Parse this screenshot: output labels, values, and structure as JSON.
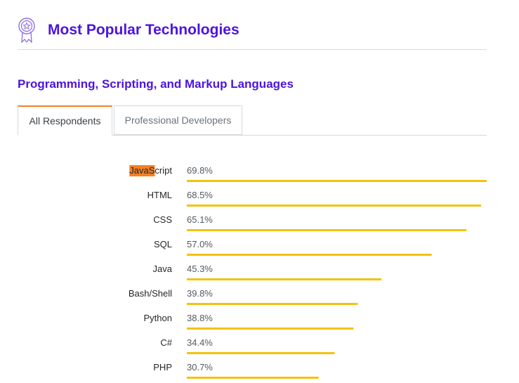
{
  "header": {
    "title": "Most Popular Technologies",
    "icon": "award-ribbon-icon",
    "accent": "#4d14e0"
  },
  "section": {
    "title": "Programming, Scripting, and Markup Languages"
  },
  "tabs": [
    {
      "label": "All Respondents",
      "active": true
    },
    {
      "label": "Professional Developers",
      "active": false
    }
  ],
  "colors": {
    "bar": "#f4c20d",
    "tab_active_accent": "#f48024",
    "highlight": "#f48024"
  },
  "chart_data": {
    "type": "bar",
    "orientation": "horizontal",
    "categories": [
      "JavaScript",
      "HTML",
      "CSS",
      "SQL",
      "Java",
      "Bash/Shell",
      "Python",
      "C#",
      "PHP"
    ],
    "values": [
      69.8,
      68.5,
      65.1,
      57.0,
      45.3,
      39.8,
      38.8,
      34.4,
      30.7
    ],
    "value_labels": [
      "69.8%",
      "68.5%",
      "65.1%",
      "57.0%",
      "45.3%",
      "39.8%",
      "38.8%",
      "34.4%",
      "30.7%"
    ],
    "highlight": {
      "category_index": 0,
      "text": "JavaS"
    },
    "xlim": [
      0,
      69.8
    ],
    "grid": false,
    "legend": "none"
  }
}
